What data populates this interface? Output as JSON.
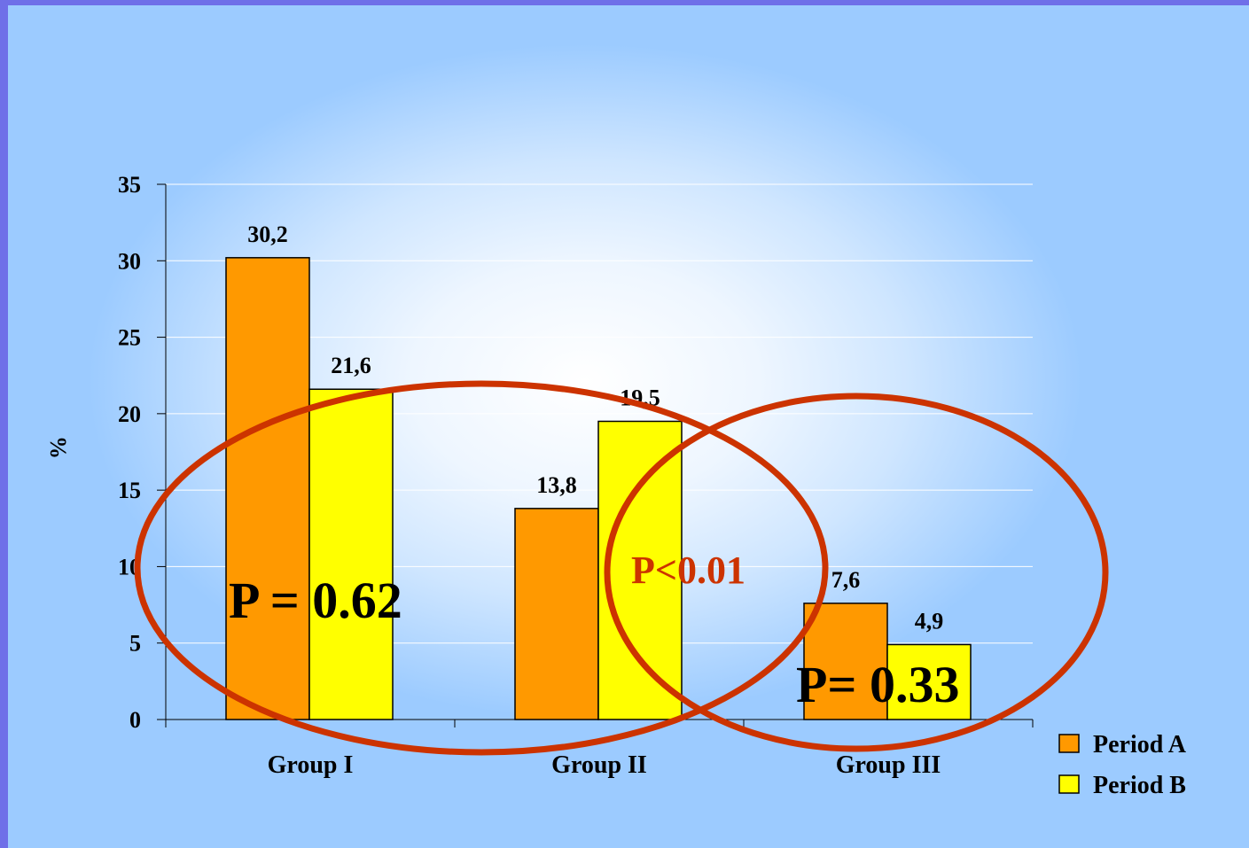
{
  "colors": {
    "period_a": "#ff9900",
    "period_b": "#ffff00",
    "ellipse": "#cc3300",
    "p_red_text": "#cc3300"
  },
  "chart_data": {
    "type": "bar",
    "ylabel": "%",
    "ylim": [
      0,
      35
    ],
    "yticks": [
      0,
      5,
      10,
      15,
      20,
      25,
      30,
      35
    ],
    "categories": [
      "Group I",
      "Group II",
      "Group III"
    ],
    "series": [
      {
        "name": "Period A",
        "values": [
          30.2,
          13.8,
          7.6
        ],
        "labels": [
          "30,2",
          "13,8",
          "7,6"
        ]
      },
      {
        "name": "Period B",
        "values": [
          21.6,
          19.5,
          4.9
        ],
        "labels": [
          "21,6",
          "19,5",
          "4,9"
        ]
      }
    ],
    "grid": true,
    "legend": "bottom-right",
    "annotations": [
      {
        "text": "P = 0.62"
      },
      {
        "text": "P<0.01"
      },
      {
        "text": "P= 0.33"
      }
    ]
  }
}
